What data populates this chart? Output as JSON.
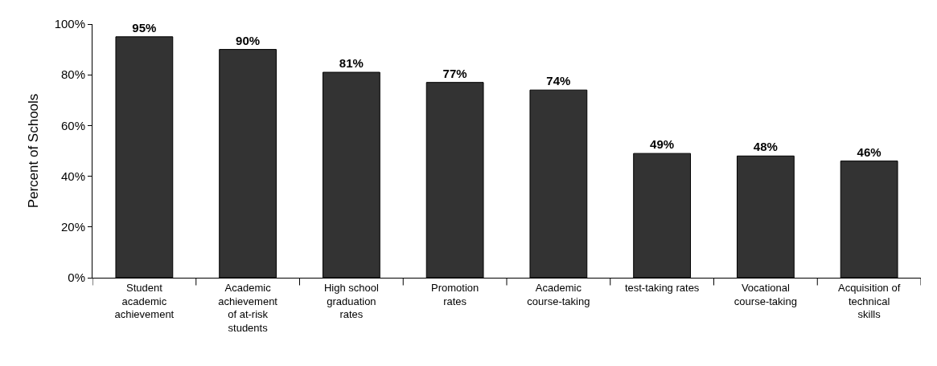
{
  "chart_data": {
    "type": "bar",
    "ylabel": "Percent of Schools",
    "categories": [
      "Student\nacademic\nachievement",
      "Academic\nachievement\nof at-risk\nstudents",
      "High school\ngraduation\nrates",
      "Promotion\nrates",
      "Academic\ncourse-taking",
      "test-taking rates",
      "Vocational\ncourse-taking",
      "Acquisition of\ntechnical\nskills"
    ],
    "values": [
      95,
      90,
      81,
      77,
      74,
      49,
      48,
      46
    ],
    "value_labels": [
      "95%",
      "90%",
      "81%",
      "77%",
      "74%",
      "49%",
      "48%",
      "46%"
    ],
    "color": "#333333",
    "ylim": [
      0,
      100
    ],
    "yticks": [
      {
        "value": 0,
        "label": "0%"
      },
      {
        "value": 20,
        "label": "20%"
      },
      {
        "value": 40,
        "label": "40%"
      },
      {
        "value": 60,
        "label": "60%"
      },
      {
        "value": 80,
        "label": "80%"
      },
      {
        "value": 100,
        "label": "100%"
      }
    ],
    "legend": false
  }
}
